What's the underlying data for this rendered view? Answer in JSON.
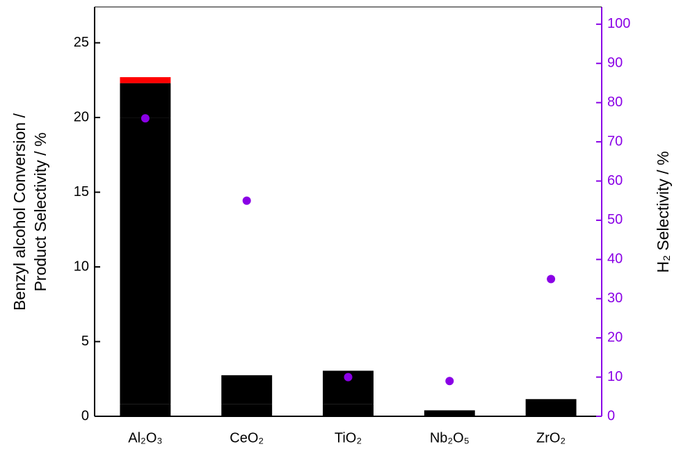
{
  "chart_data": {
    "type": "bar",
    "stacked": true,
    "categories": [
      "Al₂O₃",
      "CeO₂",
      "TiO₂",
      "Nb₂O₅",
      "ZrO₂"
    ],
    "y_label": [
      "Benzyl alcohol Conversion /",
      "Product Selectivity / %"
    ],
    "y2_label": "H₂ Selectivity / %",
    "y2_color": "#8a00e6",
    "series": [
      {
        "color": "#000000",
        "values": [
          0.8,
          0.8,
          0.8,
          0.4,
          1.15
        ]
      },
      {
        "color": "#000000",
        "values": [
          19.2,
          1.95,
          2.25,
          0,
          0
        ]
      },
      {
        "color": "#000000",
        "values": [
          2.3,
          0,
          0,
          0,
          0
        ]
      },
      {
        "color": "#ff0000",
        "values": [
          0.4,
          0,
          0,
          0,
          0
        ]
      },
      {
        "type": "scatter",
        "axis": "y2",
        "color": "#8a00e6",
        "values": [
          76,
          55,
          10,
          9,
          35
        ]
      }
    ],
    "ylim": [
      0,
      27.4
    ],
    "yticks": [
      0,
      5,
      10,
      15,
      20,
      25
    ],
    "y2lim": [
      0,
      104.4
    ],
    "y2ticks": [
      0,
      10,
      20,
      30,
      40,
      50,
      60,
      70,
      80,
      90,
      100
    ]
  }
}
